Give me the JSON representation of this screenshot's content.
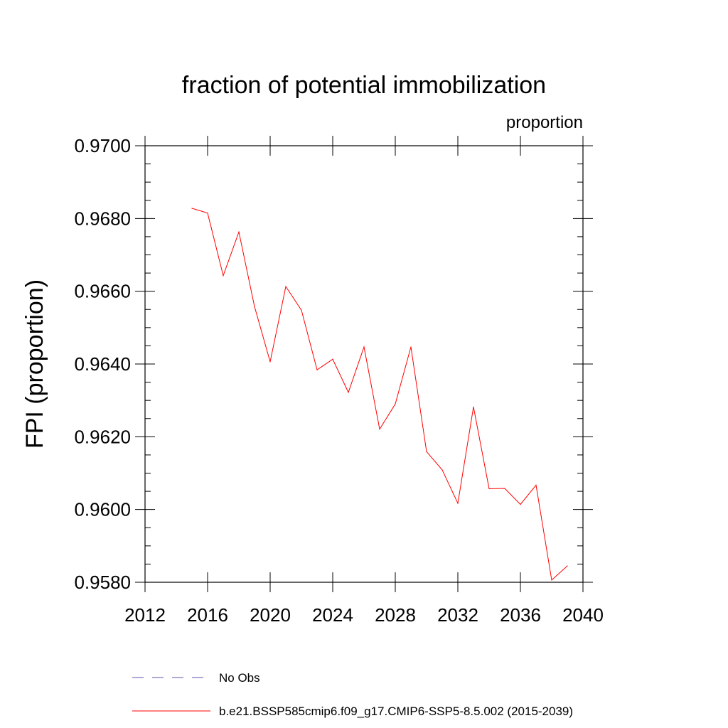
{
  "chart_data": {
    "type": "line",
    "title": "fraction of potential immobilization",
    "units_label": "proportion",
    "xlabel": "",
    "ylabel": "FPI  (proportion)",
    "xlim": [
      2012,
      2040
    ],
    "ylim": [
      0.958,
      0.97
    ],
    "x_ticks": [
      2012,
      2016,
      2020,
      2024,
      2028,
      2032,
      2036,
      2040
    ],
    "x_tick_labels": [
      "2012",
      "2016",
      "2020",
      "2024",
      "2028",
      "2032",
      "2036",
      "2040"
    ],
    "y_ticks": [
      0.958,
      0.96,
      0.962,
      0.964,
      0.966,
      0.968,
      0.97
    ],
    "y_tick_labels": [
      "0.9580",
      "0.9600",
      "0.9620",
      "0.9640",
      "0.9660",
      "0.9680",
      "0.9700"
    ],
    "grid": false,
    "legend_position": "bottom",
    "series": [
      {
        "name": "b.e21.BSSP585cmip6.f09_g17.CMIP6-SSP5-8.5.002 (2015-2039)",
        "color": "#ff0000",
        "style": "solid",
        "x": [
          2015,
          2016,
          2017,
          2018,
          2019,
          2020,
          2021,
          2022,
          2023,
          2024,
          2025,
          2026,
          2027,
          2028,
          2029,
          2030,
          2031,
          2032,
          2033,
          2034,
          2035,
          2036,
          2037,
          2038,
          2039
        ],
        "values": [
          0.96828,
          0.96815,
          0.96643,
          0.96763,
          0.96558,
          0.96406,
          0.96613,
          0.96548,
          0.96384,
          0.96413,
          0.96322,
          0.96447,
          0.96221,
          0.9629,
          0.96447,
          0.96159,
          0.96109,
          0.96017,
          0.96282,
          0.96057,
          0.96058,
          0.96014,
          0.96067,
          0.95806,
          0.95845
        ]
      }
    ],
    "legend": [
      {
        "label": "No Obs",
        "color": "#5555aa",
        "style": "dashed"
      },
      {
        "label": "b.e21.BSSP585cmip6.f09_g17.CMIP6-SSP5-8.5.002 (2015-2039)",
        "color": "#ff0000",
        "style": "solid"
      }
    ]
  }
}
